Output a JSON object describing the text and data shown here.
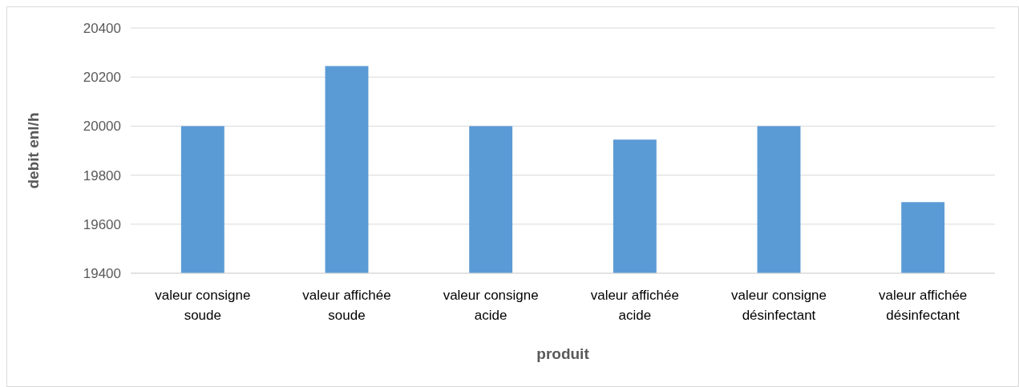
{
  "chart_data": {
    "type": "bar",
    "xlabel": "produit",
    "ylabel": "debit enl/h",
    "categories": [
      "valeur consigne soude",
      "valeur affichée soude",
      "valeur consigne acide",
      "valeur affichée acide",
      "valeur consigne désinfectant",
      "valeur affichée désinfectant"
    ],
    "values": [
      20000,
      20245,
      20000,
      19945,
      20000,
      19690
    ],
    "color": "#5b9bd5",
    "ylim": [
      19400,
      20400
    ],
    "yticks": [
      19400,
      19600,
      19800,
      20000,
      20200,
      20400
    ],
    "grid": "y"
  }
}
